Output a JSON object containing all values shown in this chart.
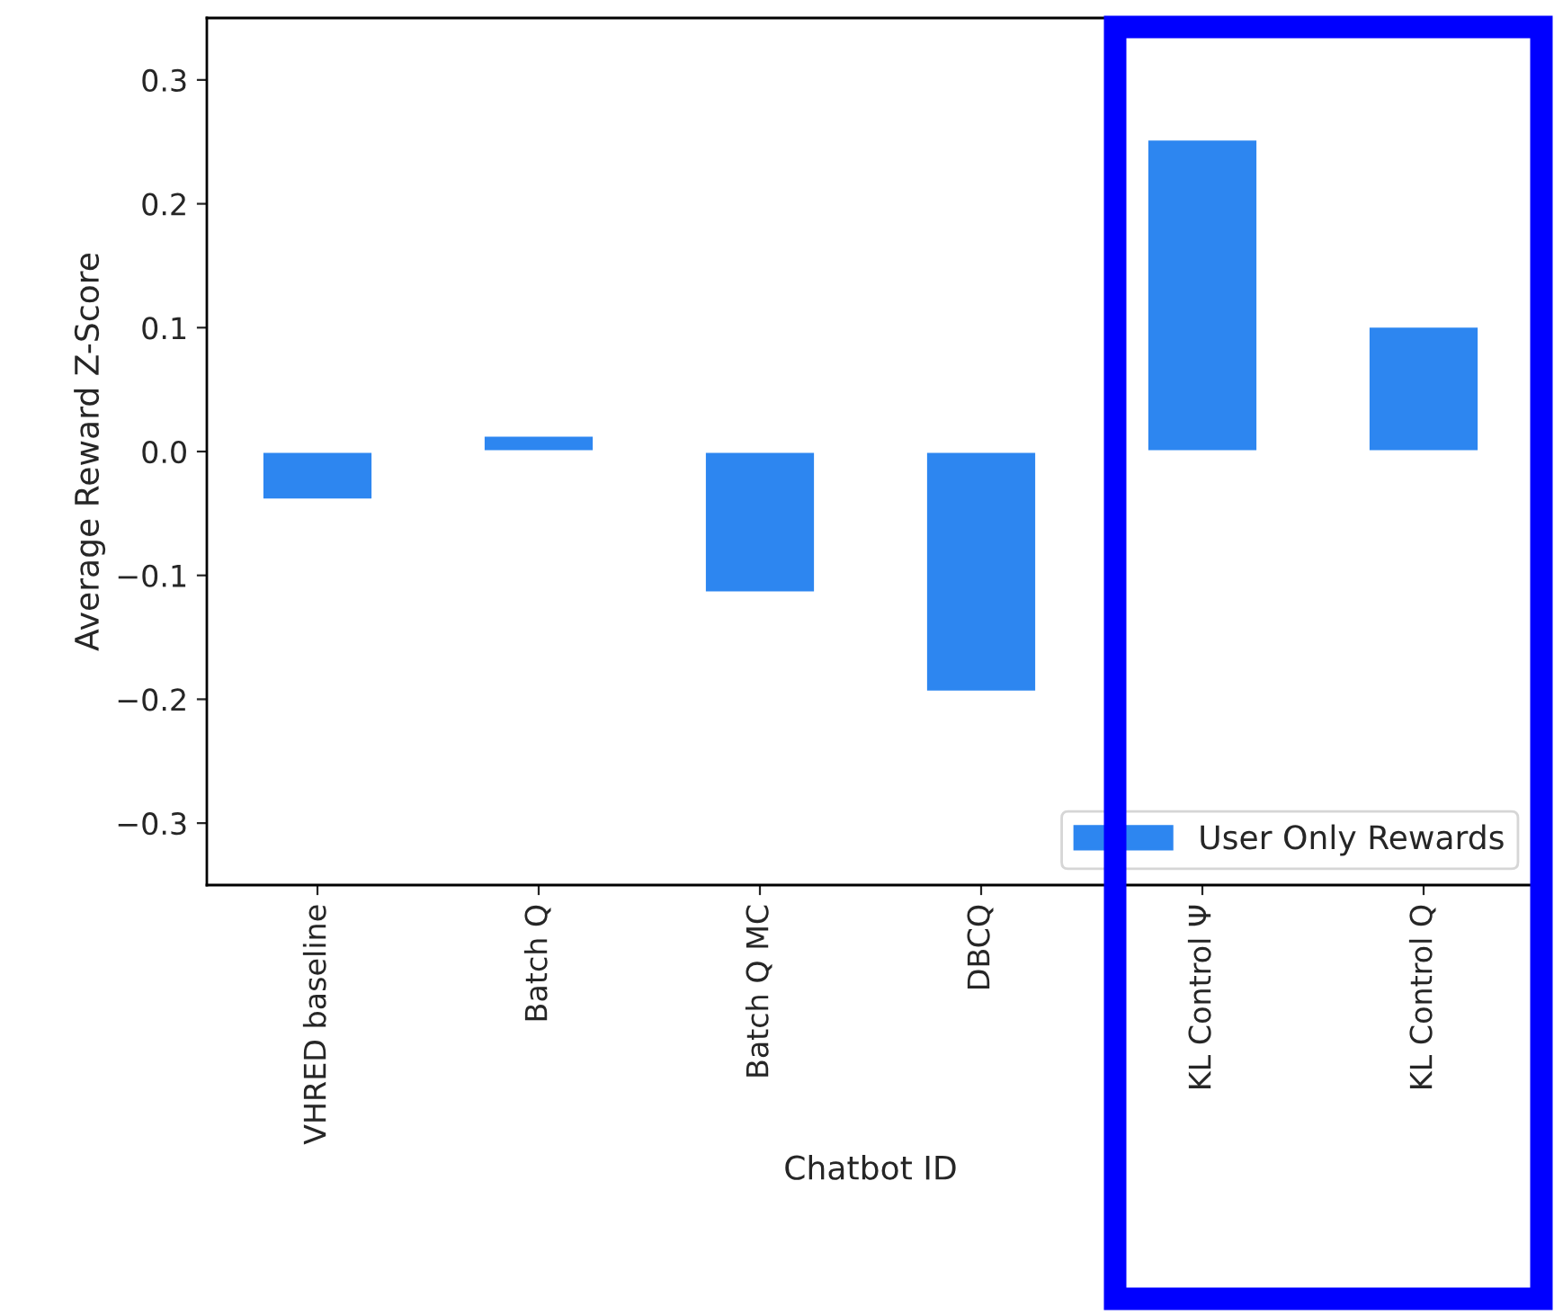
{
  "chart_data": {
    "type": "bar",
    "xlabel": "Chatbot ID",
    "ylabel": "Average Reward Z-Score",
    "categories": [
      "VHRED baseline",
      "Batch Q",
      "Batch Q MC",
      "DBCQ",
      "KL Control Ψ",
      "KL Control Q"
    ],
    "series": [
      {
        "name": "User Only Rewards",
        "color": "#2d86f0",
        "values": [
          -0.039,
          0.013,
          -0.114,
          -0.194,
          0.252,
          0.101
        ]
      }
    ],
    "ylim": [
      -0.35,
      0.35
    ],
    "yticks": [
      {
        "value": -0.3,
        "label": "−0.3"
      },
      {
        "value": -0.2,
        "label": "−0.2"
      },
      {
        "value": -0.1,
        "label": "−0.1"
      },
      {
        "value": 0,
        "label": "0.0"
      },
      0.1,
      0.2,
      0.3
    ],
    "legend": "lower right",
    "grid": false
  }
}
